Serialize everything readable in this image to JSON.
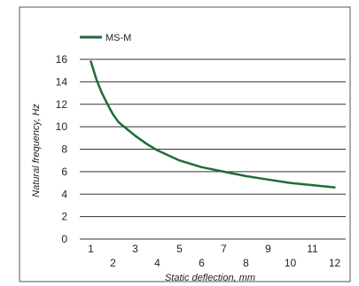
{
  "chart_data": {
    "type": "line",
    "xlabel": "Static deflection, mm",
    "ylabel": "Natural frequency, Hz",
    "xlim": [
      0.5,
      12.5
    ],
    "ylim": [
      0,
      16
    ],
    "x_ticks_upper": [
      "1",
      "3",
      "5",
      "7",
      "9",
      "11"
    ],
    "x_ticks_lower": [
      "2",
      "4",
      "6",
      "8",
      "10",
      "12"
    ],
    "y_ticks": [
      "0",
      "2",
      "4",
      "6",
      "8",
      "10",
      "12",
      "14",
      "16"
    ],
    "grid": "horizontal",
    "legend_position": "top-left",
    "colors": {
      "series": "#1f6b3a",
      "grid": "#333333",
      "frame": "#555555"
    },
    "series": [
      {
        "name": "MS-M",
        "x": [
          1.0,
          1.25,
          1.5,
          1.75,
          2.0,
          2.25,
          2.5,
          3.0,
          3.5,
          4.0,
          5.0,
          6.0,
          7.0,
          8.0,
          9.0,
          10.0,
          11.0,
          12.0
        ],
        "y": [
          15.8,
          14.2,
          13.0,
          12.0,
          11.1,
          10.4,
          10.0,
          9.2,
          8.5,
          7.9,
          7.0,
          6.4,
          6.0,
          5.6,
          5.3,
          5.0,
          4.8,
          4.6
        ]
      }
    ]
  }
}
